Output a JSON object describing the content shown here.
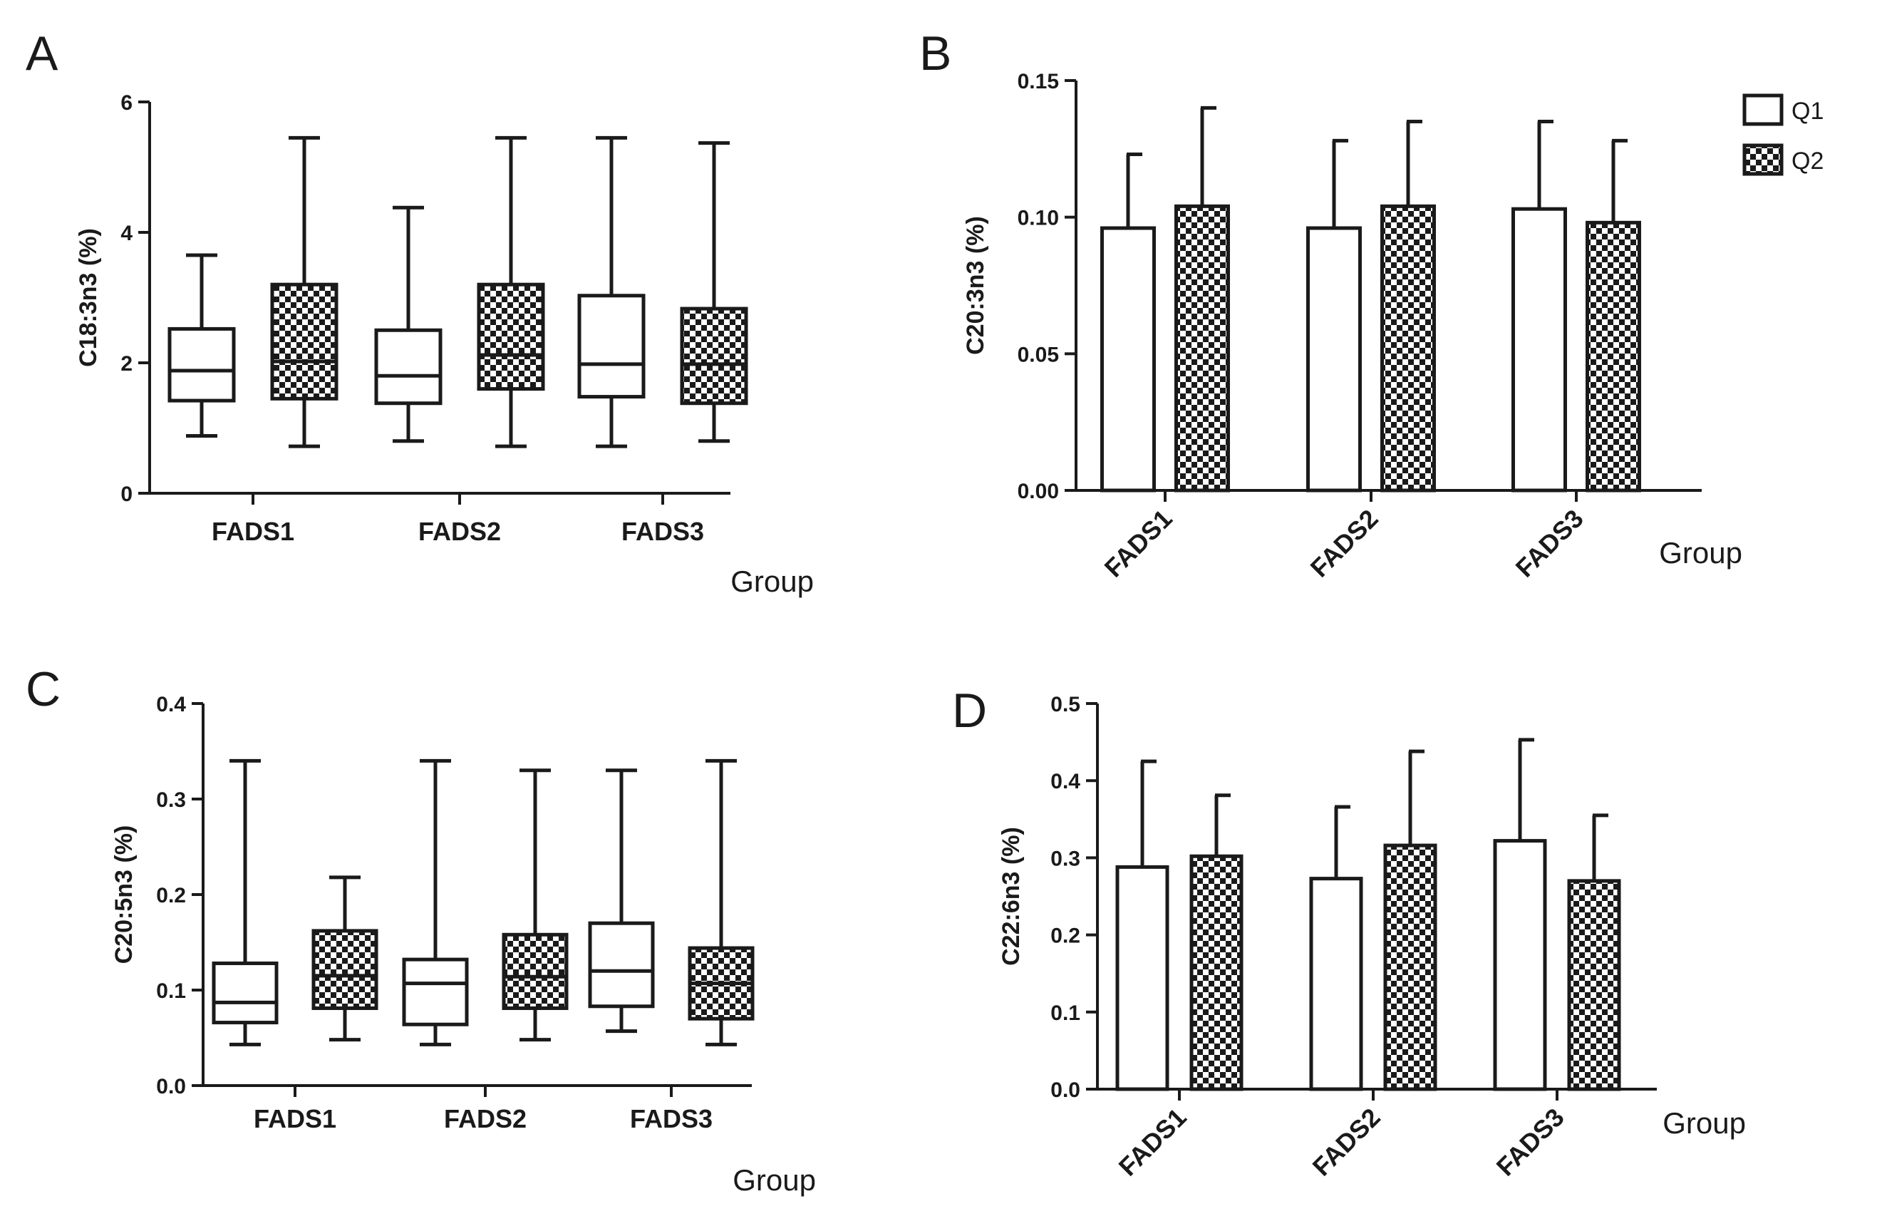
{
  "chart_data": [
    {
      "panel": "A",
      "type": "box",
      "ylabel": "C18:3n3 (%)",
      "xlabel": "Group",
      "ylim": [
        0,
        6
      ],
      "yticks": [
        0,
        2,
        4,
        6
      ],
      "ytick_labels": [
        "0",
        "2",
        "4",
        "6"
      ],
      "categories": [
        "FADS1",
        "FADS2",
        "FADS3"
      ],
      "series": [
        {
          "name": "Q1",
          "boxes": [
            {
              "min": 0.88,
              "q1": 1.42,
              "median": 1.88,
              "q3": 2.52,
              "max": 3.65
            },
            {
              "min": 0.8,
              "q1": 1.38,
              "median": 1.8,
              "q3": 2.5,
              "max": 4.38
            },
            {
              "min": 0.72,
              "q1": 1.48,
              "median": 1.98,
              "q3": 3.03,
              "max": 5.45
            }
          ]
        },
        {
          "name": "Q2",
          "boxes": [
            {
              "min": 0.72,
              "q1": 1.45,
              "median": 2.02,
              "q3": 3.2,
              "max": 5.45
            },
            {
              "min": 0.72,
              "q1": 1.6,
              "median": 2.12,
              "q3": 3.2,
              "max": 5.45
            },
            {
              "min": 0.8,
              "q1": 1.38,
              "median": 1.98,
              "q3": 2.83,
              "max": 5.37
            }
          ]
        }
      ]
    },
    {
      "panel": "B",
      "type": "bar",
      "ylabel": "C20:3n3 (%)",
      "xlabel": "Group",
      "ylim": [
        0,
        0.15
      ],
      "yticks": [
        0,
        0.05,
        0.1,
        0.15
      ],
      "ytick_labels": [
        "0.00",
        "0.05",
        "0.10",
        "0.15"
      ],
      "categories": [
        "FADS1",
        "FADS2",
        "FADS3"
      ],
      "series": [
        {
          "name": "Q1",
          "values": [
            0.096,
            0.096,
            0.103
          ],
          "errors": [
            0.027,
            0.032,
            0.032
          ]
        },
        {
          "name": "Q2",
          "values": [
            0.104,
            0.104,
            0.098
          ],
          "errors": [
            0.036,
            0.031,
            0.03
          ]
        }
      ],
      "legend": {
        "position": "top-right",
        "entries": [
          "Q1",
          "Q2"
        ]
      }
    },
    {
      "panel": "C",
      "type": "box",
      "ylabel": "C20:5n3 (%)",
      "xlabel": "Group",
      "ylim": [
        0,
        0.4
      ],
      "yticks": [
        0,
        0.1,
        0.2,
        0.3,
        0.4
      ],
      "ytick_labels": [
        "0.0",
        "0.1",
        "0.2",
        "0.3",
        "0.4"
      ],
      "categories": [
        "FADS1",
        "FADS2",
        "FADS3"
      ],
      "series": [
        {
          "name": "Q1",
          "boxes": [
            {
              "min": 0.043,
              "q1": 0.066,
              "median": 0.087,
              "q3": 0.128,
              "max": 0.34
            },
            {
              "min": 0.043,
              "q1": 0.064,
              "median": 0.107,
              "q3": 0.132,
              "max": 0.34
            },
            {
              "min": 0.057,
              "q1": 0.083,
              "median": 0.12,
              "q3": 0.17,
              "max": 0.33
            }
          ]
        },
        {
          "name": "Q2",
          "boxes": [
            {
              "min": 0.048,
              "q1": 0.081,
              "median": 0.115,
              "q3": 0.162,
              "max": 0.218
            },
            {
              "min": 0.048,
              "q1": 0.081,
              "median": 0.114,
              "q3": 0.158,
              "max": 0.33
            },
            {
              "min": 0.043,
              "q1": 0.07,
              "median": 0.107,
              "q3": 0.144,
              "max": 0.34
            }
          ]
        }
      ]
    },
    {
      "panel": "D",
      "type": "bar",
      "ylabel": "C22:6n3 (%)",
      "xlabel": "Group",
      "ylim": [
        0,
        0.5
      ],
      "yticks": [
        0,
        0.1,
        0.2,
        0.3,
        0.4,
        0.5
      ],
      "ytick_labels": [
        "0.0",
        "0.1",
        "0.2",
        "0.3",
        "0.4",
        "0.5"
      ],
      "categories": [
        "FADS1",
        "FADS2",
        "FADS3"
      ],
      "series": [
        {
          "name": "Q1",
          "values": [
            0.288,
            0.273,
            0.322
          ],
          "errors": [
            0.137,
            0.093,
            0.131
          ]
        },
        {
          "name": "Q2",
          "values": [
            0.302,
            0.316,
            0.27
          ],
          "errors": [
            0.079,
            0.122,
            0.085
          ]
        }
      ]
    }
  ]
}
